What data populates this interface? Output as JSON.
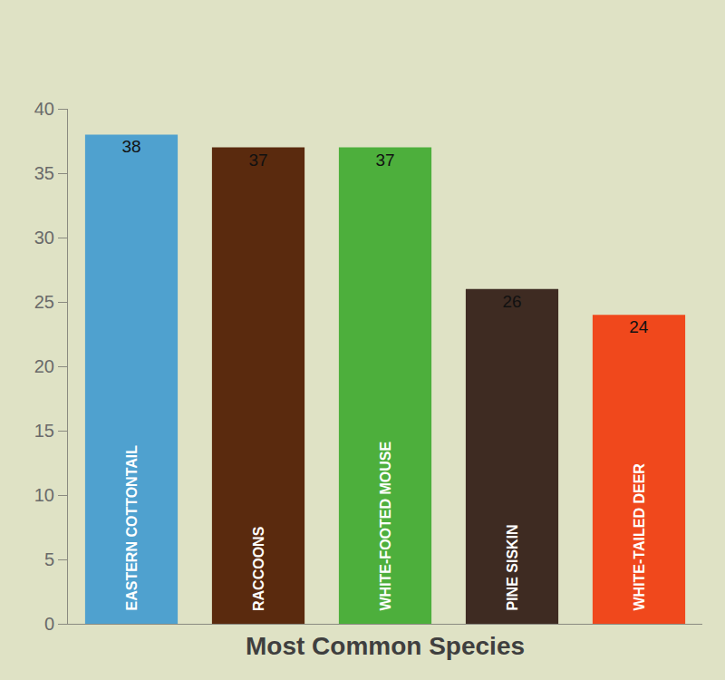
{
  "chart_data": {
    "type": "bar",
    "xlabel": "Most Common Species",
    "categories": [
      "EASTERN COTTONTAIL",
      "RACCOONS",
      "WHITE-FOOTED MOUSE",
      "PINE SISKIN",
      "WHITE-TAILED DEER"
    ],
    "values": [
      38,
      37,
      37,
      26,
      24
    ],
    "colors": [
      "#4fa1cf",
      "#5a2a0e",
      "#4daf3c",
      "#3e2b22",
      "#f0481c"
    ],
    "ylim": [
      0,
      40
    ],
    "yticks": [
      0,
      5,
      10,
      15,
      20,
      25,
      30,
      35,
      40
    ],
    "grid": false,
    "data_labels": true,
    "tick_labels": "y"
  }
}
